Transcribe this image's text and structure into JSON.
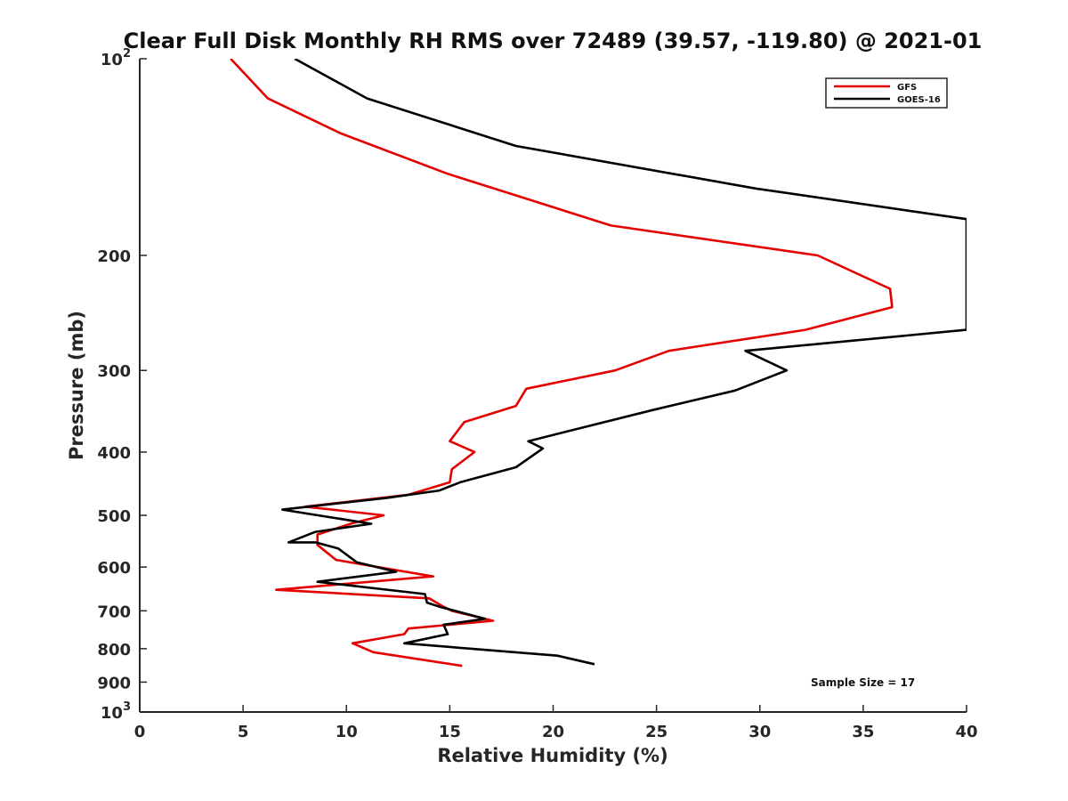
{
  "chart_data": {
    "type": "line",
    "title": "Clear Full Disk Monthly RH RMS over 72489 (39.57, -119.80) @ 2021-01",
    "xlabel": "Relative Humidity (%)",
    "ylabel": "Pressure (mb)",
    "xlim": [
      0,
      40
    ],
    "ylim": [
      100,
      1000
    ],
    "yscale": "log",
    "yreversed": true,
    "x_ticks": [
      0,
      5,
      10,
      15,
      20,
      25,
      30,
      35,
      40
    ],
    "x_tick_labels": [
      "0",
      "5",
      "10",
      "15",
      "20",
      "25",
      "30",
      "35",
      "40"
    ],
    "y_ticks": [
      100,
      200,
      300,
      400,
      500,
      600,
      700,
      800,
      900,
      1000
    ],
    "y_tick_labels": [
      {
        "base": "10",
        "exp": "2"
      },
      {
        "base": "200",
        "exp": ""
      },
      {
        "base": "300",
        "exp": ""
      },
      {
        "base": "400",
        "exp": ""
      },
      {
        "base": "500",
        "exp": ""
      },
      {
        "base": "600",
        "exp": ""
      },
      {
        "base": "700",
        "exp": ""
      },
      {
        "base": "800",
        "exp": ""
      },
      {
        "base": "900",
        "exp": ""
      },
      {
        "base": "10",
        "exp": "3"
      }
    ],
    "legend_position": "top-right",
    "grid": false,
    "series": [
      {
        "name": "GFS",
        "color": "#e50000",
        "x": [
          4.4,
          6.2,
          9.7,
          14.9,
          22.8,
          32.8,
          36.3,
          36.4,
          32.2,
          25.6,
          23.0,
          18.7,
          18.2,
          15.7,
          15.0,
          16.2,
          15.1,
          15.0,
          13.0,
          8.0,
          11.8,
          10.2,
          8.6,
          8.6,
          9.5,
          12.2,
          14.2,
          6.6,
          14.0,
          14.7,
          15.1,
          17.1,
          13.0,
          12.8,
          10.3,
          11.3,
          15.6
        ],
        "y": [
          100,
          115,
          130,
          150,
          180,
          200,
          225,
          240,
          260,
          280,
          300,
          320,
          340,
          360,
          385,
          400,
          425,
          445,
          465,
          485,
          500,
          515,
          535,
          555,
          585,
          605,
          620,
          650,
          670,
          690,
          700,
          725,
          745,
          760,
          785,
          810,
          850
        ]
      },
      {
        "name": "GOES-16",
        "color": "#000000",
        "x": [
          7.5,
          11.0,
          18.2,
          29.8,
          40.0,
          40.0,
          29.3,
          31.3,
          28.8,
          24.8,
          18.8,
          19.5,
          18.2,
          15.5,
          14.5,
          12.0,
          6.9,
          11.2,
          8.5,
          7.2,
          8.5,
          9.6,
          10.5,
          12.4,
          8.6,
          13.8,
          13.9,
          14.5,
          16.7,
          14.7,
          14.9,
          12.8,
          20.2,
          22.0
        ],
        "y": [
          100,
          115,
          136,
          158,
          176,
          260,
          280,
          300,
          322,
          345,
          385,
          395,
          422,
          445,
          458,
          470,
          490,
          515,
          530,
          550,
          550,
          562,
          590,
          610,
          632,
          660,
          680,
          690,
          720,
          735,
          760,
          785,
          820,
          845
        ]
      }
    ],
    "annotation": "Sample Size = 17"
  }
}
